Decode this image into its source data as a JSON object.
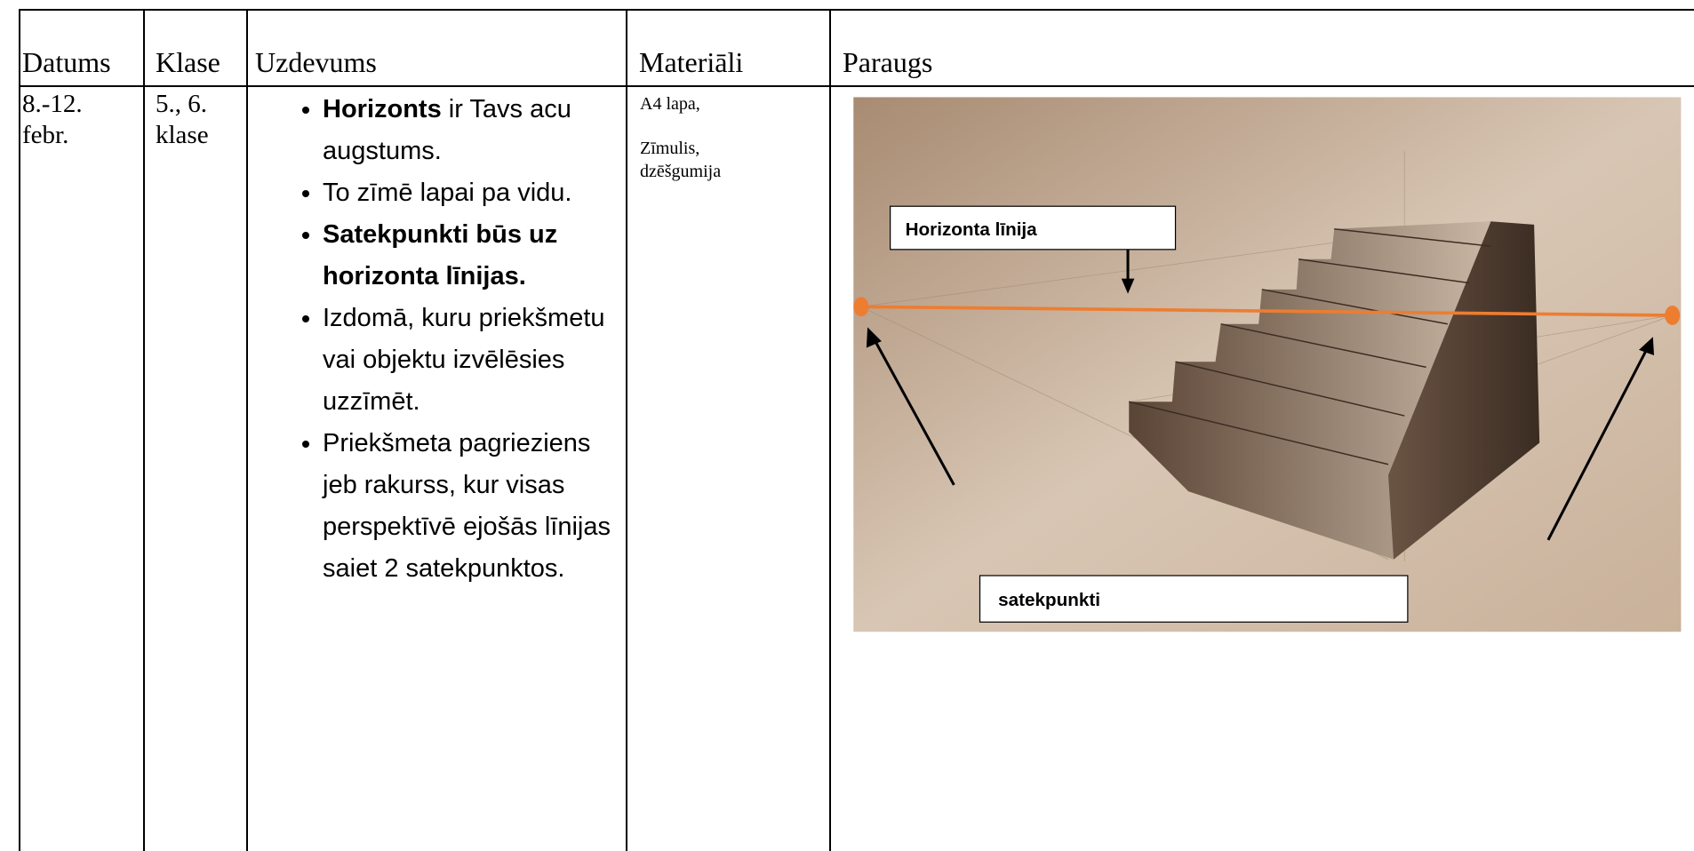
{
  "table": {
    "headers": [
      "Datums",
      "Klase",
      "Uzdevums",
      "Materiāli",
      "Paraugs"
    ],
    "rows": [
      {
        "date": "8.-12. febr.",
        "class": "5., 6. klase",
        "task": [
          {
            "bold": "Horizonts",
            "text": " ir Tavs acu augstums."
          },
          {
            "text": "To zīmē lapai pa vidu."
          },
          {
            "bold": "Satekpunkti būs uz horizonta līnijas."
          },
          {
            "text": "Izdomā, kuru priekšmetu vai objektu izvēlēsies uzzīmēt."
          },
          {
            "text": "Priekšmeta pagrieziens jeb rakurss, kur visas perspektīvē ejošās līnijas saiet 2 satekpunktos."
          }
        ],
        "materials": [
          "A4 lapa,",
          "Zīmulis, dzēšgumija"
        ],
        "example": {
          "horizon_label": "Horizonta līnija",
          "vanishing_label": "satekpunkti"
        }
      }
    ]
  }
}
